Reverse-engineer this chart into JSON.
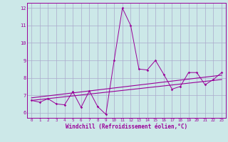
{
  "xlabel": "Windchill (Refroidissement éolien,°C)",
  "bg_color": "#cce8e8",
  "grid_color": "#aaaacc",
  "line_color": "#990099",
  "line_color2": "#660066",
  "xlim": [
    -0.5,
    23.5
  ],
  "ylim": [
    5.7,
    12.3
  ],
  "yticks": [
    6,
    7,
    8,
    9,
    10,
    11,
    12
  ],
  "xticks": [
    0,
    1,
    2,
    3,
    4,
    5,
    6,
    7,
    8,
    9,
    10,
    11,
    12,
    13,
    14,
    15,
    16,
    17,
    18,
    19,
    20,
    21,
    22,
    23
  ],
  "data_line": [
    [
      0,
      6.7
    ],
    [
      1,
      6.6
    ],
    [
      2,
      6.8
    ],
    [
      3,
      6.5
    ],
    [
      4,
      6.45
    ],
    [
      5,
      7.2
    ],
    [
      6,
      6.3
    ],
    [
      7,
      7.25
    ],
    [
      8,
      6.35
    ],
    [
      9,
      5.9
    ],
    [
      10,
      9.0
    ],
    [
      11,
      12.0
    ],
    [
      12,
      11.0
    ],
    [
      13,
      8.5
    ],
    [
      14,
      8.45
    ],
    [
      15,
      9.0
    ],
    [
      16,
      8.2
    ],
    [
      17,
      7.35
    ],
    [
      18,
      7.5
    ],
    [
      19,
      8.3
    ],
    [
      20,
      8.3
    ],
    [
      21,
      7.6
    ],
    [
      22,
      7.9
    ],
    [
      23,
      8.3
    ]
  ],
  "trend_line": [
    [
      0,
      6.7
    ],
    [
      23,
      7.9
    ]
  ],
  "trend_line2": [
    [
      0,
      6.85
    ],
    [
      23,
      8.15
    ]
  ]
}
